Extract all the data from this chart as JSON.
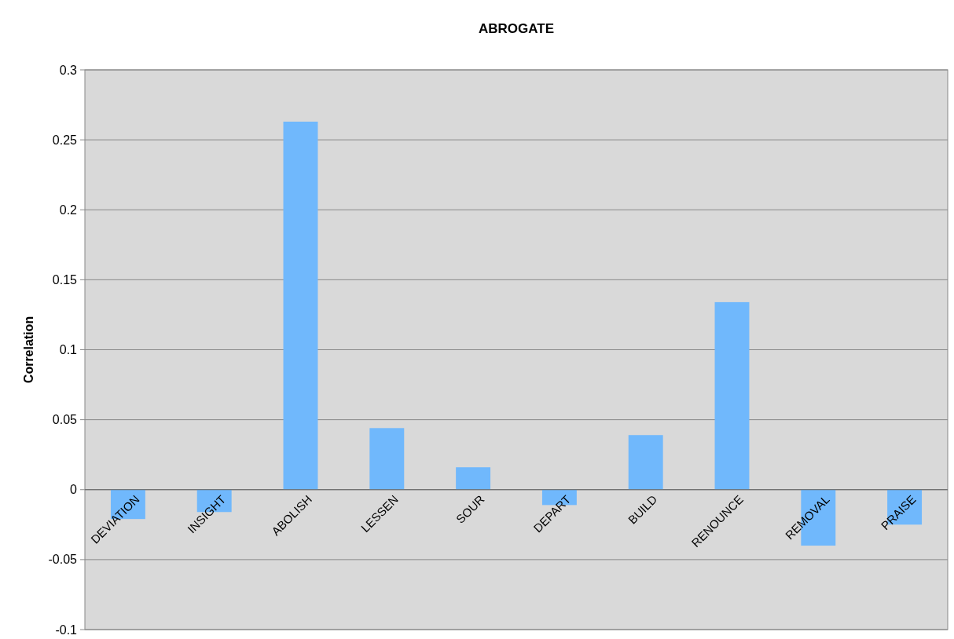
{
  "chart_data": {
    "type": "bar",
    "title": "ABROGATE",
    "ylabel": "Correlation",
    "categories": [
      "DEVIATION",
      "INSIGHT",
      "ABOLISH",
      "LESSEN",
      "SOUR",
      "DEPART",
      "BUILD",
      "RENOUNCE",
      "REMOVAL",
      "PRAISE"
    ],
    "values": [
      -0.021,
      -0.016,
      0.263,
      0.044,
      0.016,
      -0.011,
      0.039,
      0.134,
      -0.04,
      -0.025
    ],
    "color": "#70b8fc",
    "ylim": [
      -0.1,
      0.3
    ],
    "yticks": [
      -0.1,
      -0.05,
      0,
      0.05,
      0.1,
      0.15,
      0.2,
      0.25,
      0.3
    ],
    "grid": "y"
  }
}
